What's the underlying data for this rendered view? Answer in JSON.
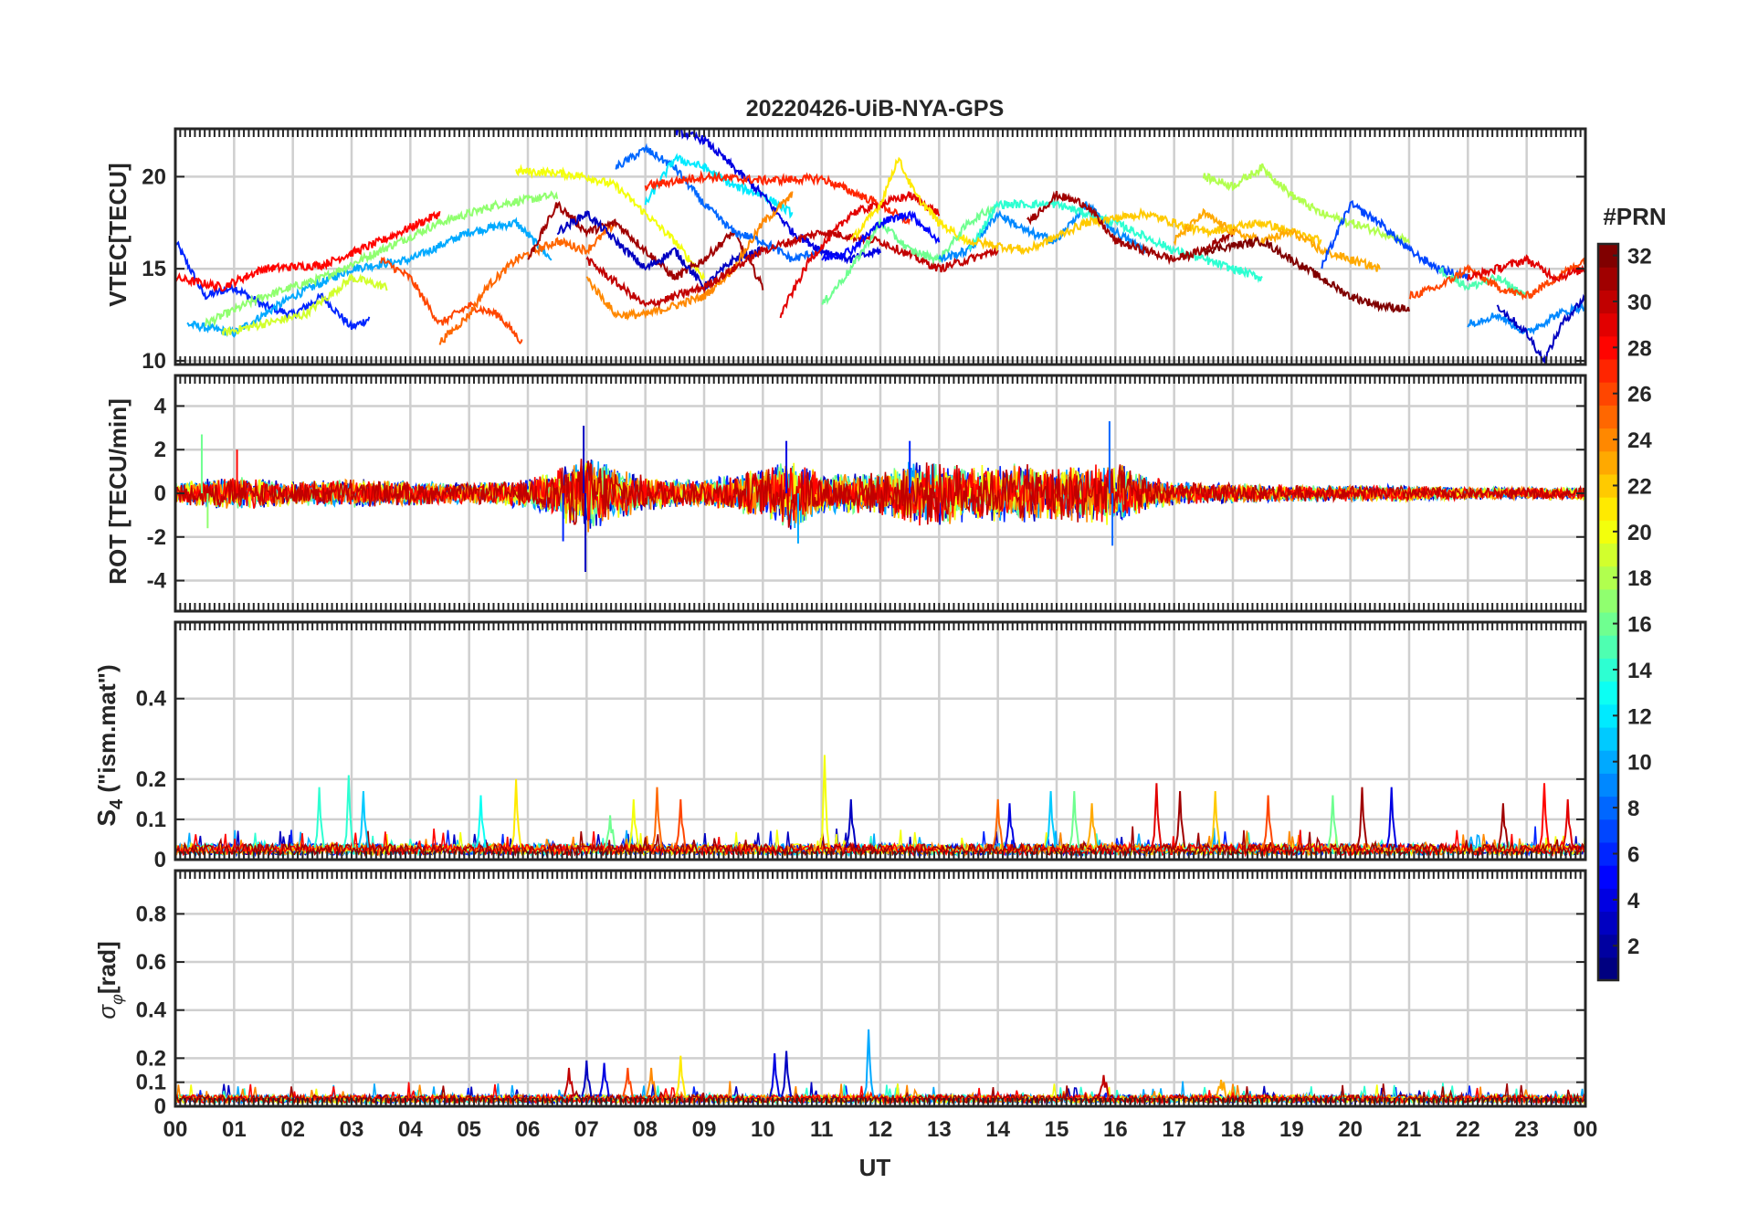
{
  "figure": {
    "title": "20220426-UiB-NYA-GPS",
    "xlabel": "UT",
    "x_tick_labels": [
      "00",
      "01",
      "02",
      "03",
      "04",
      "05",
      "06",
      "07",
      "08",
      "09",
      "10",
      "11",
      "12",
      "13",
      "14",
      "15",
      "16",
      "17",
      "18",
      "19",
      "20",
      "21",
      "22",
      "23",
      "00"
    ]
  },
  "colorbar": {
    "title": "#PRN",
    "tick_labels": [
      "2",
      "4",
      "6",
      "8",
      "10",
      "12",
      "14",
      "16",
      "18",
      "20",
      "22",
      "24",
      "26",
      "28",
      "30",
      "32"
    ],
    "range": [
      1,
      32
    ],
    "colormap": "jet",
    "colormap_colors": [
      "#00008f",
      "#0000ff",
      "#0080ff",
      "#00ffff",
      "#80ff80",
      "#ffff00",
      "#ff8000",
      "#ff0000",
      "#800000"
    ]
  },
  "chart_data": [
    {
      "type": "line",
      "panel": "VTEC",
      "ylabel": "VTEC[TECU]",
      "xlim": [
        0,
        24
      ],
      "ylim": [
        9.8,
        22.6
      ],
      "y_ticks": [
        10,
        15,
        20
      ],
      "y_tick_labels": [
        "10",
        "15",
        "20"
      ],
      "series_note": "one trace per GPS PRN, colored by PRN number",
      "series": [
        {
          "prn": 6,
          "x": [
            0.0,
            0.5,
            1.0,
            1.5,
            2.0,
            2.5,
            3.0,
            3.3
          ],
          "y": [
            16.5,
            13.5,
            14.0,
            13.0,
            12.5,
            13.5,
            11.8,
            12.3
          ]
        },
        {
          "prn": 10,
          "x": [
            0.2,
            1.0,
            2.0,
            3.0,
            4.0,
            5.0,
            5.8,
            6.4
          ],
          "y": [
            12.0,
            11.5,
            13.5,
            15.0,
            15.5,
            17.0,
            17.5,
            15.5
          ]
        },
        {
          "prn": 17,
          "x": [
            0.5,
            1.5,
            2.5,
            3.5,
            4.5,
            5.5,
            6.5
          ],
          "y": [
            12.0,
            13.5,
            14.5,
            16.0,
            17.5,
            18.5,
            19.0
          ]
        },
        {
          "prn": 19,
          "x": [
            0.8,
            1.5,
            2.2,
            3.0,
            3.6
          ],
          "y": [
            11.5,
            12.0,
            12.5,
            14.5,
            14.0
          ]
        },
        {
          "prn": 28,
          "x": [
            0.0,
            0.8,
            1.5,
            2.5,
            3.5,
            4.5
          ],
          "y": [
            14.5,
            14.0,
            15.0,
            15.2,
            16.5,
            18.0
          ]
        },
        {
          "prn": 26,
          "x": [
            3.5,
            4.0,
            4.5,
            5.0,
            5.5,
            5.9
          ],
          "y": [
            15.5,
            14.5,
            12.0,
            13.0,
            12.5,
            11.0
          ]
        },
        {
          "prn": 25,
          "x": [
            4.5,
            5.0,
            5.3,
            5.8,
            6.5,
            7.0,
            7.5
          ],
          "y": [
            11.0,
            12.5,
            14.0,
            15.5,
            16.5,
            16.0,
            17.5
          ]
        },
        {
          "prn": 20,
          "x": [
            5.8,
            6.5,
            7.0,
            7.5,
            8.0,
            8.5,
            9.0
          ],
          "y": [
            20.3,
            20.2,
            20.0,
            19.5,
            18.0,
            16.5,
            14.5
          ]
        },
        {
          "prn": 31,
          "x": [
            6.0,
            6.5,
            7.0,
            7.5,
            8.0,
            8.5,
            9.0,
            9.5,
            10.0
          ],
          "y": [
            15.5,
            18.5,
            17.0,
            17.5,
            16.0,
            14.5,
            15.5,
            17.0,
            14.0
          ]
        },
        {
          "prn": 3,
          "x": [
            6.5,
            7.0,
            7.5,
            8.0,
            8.5,
            9.0,
            9.5,
            10.0
          ],
          "y": [
            17.0,
            18.0,
            16.5,
            15.0,
            16.0,
            14.0,
            15.5,
            16.0
          ]
        },
        {
          "prn": 8,
          "x": [
            7.5,
            8.0,
            8.5,
            9.0,
            9.5,
            10.0,
            10.5,
            11.0
          ],
          "y": [
            20.5,
            21.5,
            20.5,
            18.5,
            17.0,
            16.5,
            15.5,
            16.0
          ]
        },
        {
          "prn": 12,
          "x": [
            8.0,
            8.5,
            9.0,
            9.5,
            10.0,
            10.5
          ],
          "y": [
            18.5,
            21.0,
            20.5,
            19.5,
            19.0,
            18.0
          ]
        },
        {
          "prn": 4,
          "x": [
            8.5,
            9.0,
            9.5,
            10.0,
            10.5,
            11.0,
            11.5,
            12.0
          ],
          "y": [
            22.5,
            22.0,
            20.5,
            19.0,
            17.0,
            16.0,
            15.5,
            16.0
          ]
        },
        {
          "prn": 24,
          "x": [
            7.0,
            7.5,
            8.0,
            8.5,
            9.0,
            9.5,
            10.0,
            10.5
          ],
          "y": [
            14.5,
            12.5,
            12.5,
            13.0,
            13.5,
            15.0,
            17.5,
            19.0
          ]
        },
        {
          "prn": 27,
          "x": [
            8.0,
            9.0,
            10.0,
            11.0,
            12.0,
            12.5
          ],
          "y": [
            19.5,
            20.0,
            19.8,
            19.9,
            18.5,
            17.5
          ]
        },
        {
          "prn": 29,
          "x": [
            10.3,
            10.8,
            11.5,
            12.5,
            13.0
          ],
          "y": [
            12.5,
            15.5,
            18.0,
            19.0,
            18.0
          ]
        },
        {
          "prn": 30,
          "x": [
            7.0,
            8.0,
            9.0,
            10.0,
            11.0,
            12.0,
            13.0,
            14.0
          ],
          "y": [
            15.5,
            13.0,
            14.0,
            16.0,
            17.0,
            16.5,
            15.0,
            16.0
          ]
        },
        {
          "prn": 21,
          "x": [
            11.5,
            12.0,
            12.3,
            12.6,
            13.0,
            13.5
          ],
          "y": [
            16.5,
            18.5,
            21.0,
            19.0,
            17.5,
            16.5
          ]
        },
        {
          "prn": 16,
          "x": [
            11.0,
            11.5,
            12.0,
            12.5,
            13.0,
            13.5,
            14.0
          ],
          "y": [
            13.0,
            15.0,
            17.5,
            16.0,
            15.5,
            17.5,
            18.5
          ]
        },
        {
          "prn": 5,
          "x": [
            11.0,
            11.5,
            12.0,
            12.5,
            13.0
          ],
          "y": [
            15.5,
            16.0,
            17.5,
            18.0,
            16.5
          ]
        },
        {
          "prn": 9,
          "x": [
            13.0,
            13.5,
            14.0,
            14.5,
            15.0,
            15.5,
            16.0,
            16.5
          ],
          "y": [
            15.5,
            16.0,
            18.0,
            17.0,
            16.5,
            18.5,
            17.0,
            16.0
          ]
        },
        {
          "prn": 14,
          "x": [
            13.5,
            14.0,
            15.0,
            16.0,
            17.0,
            18.0,
            18.5
          ],
          "y": [
            16.0,
            18.5,
            18.5,
            17.5,
            16.0,
            15.0,
            14.5
          ]
        },
        {
          "prn": 22,
          "x": [
            13.5,
            14.5,
            15.5,
            16.5,
            17.5,
            18.5,
            19.5
          ],
          "y": [
            16.5,
            16.0,
            17.5,
            18.0,
            17.0,
            17.5,
            16.5
          ]
        },
        {
          "prn": 31,
          "x": [
            14.5,
            15.0,
            15.5,
            16.0,
            16.5,
            17.0,
            17.5,
            18.0
          ],
          "y": [
            17.5,
            19.0,
            18.5,
            16.5,
            16.0,
            15.5,
            16.0,
            17.0
          ]
        },
        {
          "prn": 18,
          "x": [
            17.5,
            18.0,
            18.5,
            19.0,
            19.5,
            20.0,
            20.5,
            21.0
          ],
          "y": [
            20.0,
            19.5,
            20.5,
            19.0,
            18.0,
            17.5,
            17.0,
            16.5
          ]
        },
        {
          "prn": 23,
          "x": [
            17.0,
            17.5,
            18.0,
            18.5,
            19.0,
            19.5,
            20.0,
            20.5
          ],
          "y": [
            16.5,
            18.0,
            17.0,
            16.5,
            17.0,
            16.0,
            15.5,
            15.0
          ]
        },
        {
          "prn": 32,
          "x": [
            17.5,
            18.5,
            19.0,
            19.5,
            20.0,
            20.5,
            21.0
          ],
          "y": [
            16.0,
            16.5,
            15.5,
            14.5,
            13.5,
            13.0,
            12.8
          ]
        },
        {
          "prn": 7,
          "x": [
            19.5,
            20.0,
            20.5,
            21.0,
            21.5,
            22.0
          ],
          "y": [
            15.0,
            18.5,
            17.5,
            16.0,
            15.0,
            14.5
          ]
        },
        {
          "prn": 15,
          "x": [
            21.5,
            22.0,
            22.5,
            23.0
          ],
          "y": [
            15.0,
            14.0,
            14.5,
            13.5
          ]
        },
        {
          "prn": 26,
          "x": [
            21.0,
            21.5,
            22.0,
            22.5,
            23.0,
            23.5,
            24.0
          ],
          "y": [
            13.5,
            14.0,
            15.0,
            14.0,
            13.5,
            14.5,
            15.5
          ]
        },
        {
          "prn": 9,
          "x": [
            22.0,
            22.5,
            23.0,
            23.5,
            24.0
          ],
          "y": [
            12.0,
            12.5,
            11.5,
            12.5,
            13.0
          ]
        },
        {
          "prn": 29,
          "x": [
            22.0,
            22.5,
            23.0,
            23.5,
            24.0
          ],
          "y": [
            14.5,
            15.0,
            15.5,
            14.5,
            15.0
          ]
        },
        {
          "prn": 3,
          "x": [
            22.5,
            23.0,
            23.3,
            23.6,
            24.0
          ],
          "y": [
            13.0,
            11.5,
            10.0,
            12.0,
            13.5
          ]
        }
      ]
    },
    {
      "type": "line",
      "panel": "ROT",
      "ylabel": "ROT [TECU/min]",
      "xlim": [
        0,
        24
      ],
      "ylim": [
        -5.4,
        5.4
      ],
      "y_ticks": [
        -4,
        -2,
        0,
        2,
        4
      ],
      "y_tick_labels": [
        "-4",
        "-2",
        "0",
        "2",
        "4"
      ],
      "series_note": "dense noisy traces around 0 for all PRNs",
      "envelope": {
        "x": [
          0,
          1,
          2,
          3,
          4,
          5,
          6,
          6.5,
          7,
          7.5,
          8,
          9,
          10,
          10.5,
          11,
          12,
          12.5,
          13,
          14,
          15,
          16,
          16.5,
          17,
          18,
          19,
          20,
          21,
          22,
          23,
          24
        ],
        "y": [
          0.6,
          0.8,
          0.6,
          0.7,
          0.6,
          0.5,
          0.7,
          1.2,
          2.0,
          1.3,
          0.8,
          0.7,
          1.2,
          1.8,
          1.0,
          1.0,
          1.6,
          1.5,
          1.4,
          1.4,
          1.5,
          0.9,
          0.6,
          0.5,
          0.4,
          0.4,
          0.4,
          0.3,
          0.3,
          0.3
        ]
      },
      "spikes": [
        {
          "x": 0.45,
          "y": 2.7,
          "prn": 16
        },
        {
          "x": 1.05,
          "y": 2.0,
          "prn": 28
        },
        {
          "x": 6.95,
          "y": 3.1,
          "prn": 3
        },
        {
          "x": 6.98,
          "y": -3.6,
          "prn": 3
        },
        {
          "x": 6.6,
          "y": -2.2,
          "prn": 6
        },
        {
          "x": 10.4,
          "y": 2.4,
          "prn": 4
        },
        {
          "x": 10.6,
          "y": -2.3,
          "prn": 10
        },
        {
          "x": 12.5,
          "y": 2.4,
          "prn": 6
        },
        {
          "x": 15.9,
          "y": 3.3,
          "prn": 8
        },
        {
          "x": 15.95,
          "y": -2.4,
          "prn": 8
        },
        {
          "x": 0.55,
          "y": -1.6,
          "prn": 17
        }
      ]
    },
    {
      "type": "line",
      "panel": "S4",
      "ylabel": "S4 (\"ism.mat\")",
      "ylabel_main": "S",
      "ylabel_sub": "4",
      "ylabel_rest": " (\"ism.mat\")",
      "xlim": [
        0,
        24
      ],
      "ylim": [
        0,
        0.59
      ],
      "y_ticks": [
        0,
        0.1,
        0.2,
        0.4
      ],
      "y_tick_labels": [
        "0",
        "0.1",
        "0.2",
        "0.4"
      ],
      "baseline": 0.03,
      "spikes": [
        {
          "x": 2.45,
          "y": 0.18,
          "prn": 14
        },
        {
          "x": 2.95,
          "y": 0.21,
          "prn": 14
        },
        {
          "x": 3.2,
          "y": 0.17,
          "prn": 11
        },
        {
          "x": 5.2,
          "y": 0.16,
          "prn": 13
        },
        {
          "x": 5.8,
          "y": 0.2,
          "prn": 21
        },
        {
          "x": 7.4,
          "y": 0.11,
          "prn": 16
        },
        {
          "x": 7.8,
          "y": 0.15,
          "prn": 20
        },
        {
          "x": 8.2,
          "y": 0.18,
          "prn": 25
        },
        {
          "x": 8.6,
          "y": 0.15,
          "prn": 26
        },
        {
          "x": 11.05,
          "y": 0.26,
          "prn": 20
        },
        {
          "x": 11.5,
          "y": 0.15,
          "prn": 3
        },
        {
          "x": 14.0,
          "y": 0.15,
          "prn": 25
        },
        {
          "x": 14.2,
          "y": 0.14,
          "prn": 4
        },
        {
          "x": 14.9,
          "y": 0.17,
          "prn": 11
        },
        {
          "x": 15.3,
          "y": 0.17,
          "prn": 16
        },
        {
          "x": 15.6,
          "y": 0.14,
          "prn": 23
        },
        {
          "x": 16.7,
          "y": 0.19,
          "prn": 29
        },
        {
          "x": 17.1,
          "y": 0.17,
          "prn": 31
        },
        {
          "x": 17.7,
          "y": 0.17,
          "prn": 22
        },
        {
          "x": 18.6,
          "y": 0.16,
          "prn": 26
        },
        {
          "x": 19.7,
          "y": 0.16,
          "prn": 16
        },
        {
          "x": 20.2,
          "y": 0.18,
          "prn": 31
        },
        {
          "x": 20.7,
          "y": 0.18,
          "prn": 4
        },
        {
          "x": 22.6,
          "y": 0.14,
          "prn": 31
        },
        {
          "x": 23.3,
          "y": 0.19,
          "prn": 28
        },
        {
          "x": 23.7,
          "y": 0.15,
          "prn": 29
        }
      ]
    },
    {
      "type": "line",
      "panel": "sigma_phi",
      "ylabel": "σφ[rad]",
      "ylabel_main": "σ",
      "ylabel_sub": "φ",
      "ylabel_rest": "[rad]",
      "xlim": [
        0,
        24
      ],
      "ylim": [
        0,
        0.98
      ],
      "y_ticks": [
        0,
        0.1,
        0.2,
        0.4,
        0.6,
        0.8
      ],
      "y_tick_labels": [
        "0",
        "0.1",
        "0.2",
        "0.4",
        "0.6",
        "0.8"
      ],
      "baseline": 0.04,
      "spikes": [
        {
          "x": 6.7,
          "y": 0.16,
          "prn": 30
        },
        {
          "x": 7.0,
          "y": 0.19,
          "prn": 3
        },
        {
          "x": 7.3,
          "y": 0.18,
          "prn": 4
        },
        {
          "x": 7.7,
          "y": 0.16,
          "prn": 26
        },
        {
          "x": 8.1,
          "y": 0.16,
          "prn": 24
        },
        {
          "x": 8.6,
          "y": 0.21,
          "prn": 21
        },
        {
          "x": 10.2,
          "y": 0.22,
          "prn": 4
        },
        {
          "x": 10.4,
          "y": 0.23,
          "prn": 3
        },
        {
          "x": 11.8,
          "y": 0.32,
          "prn": 10
        },
        {
          "x": 15.8,
          "y": 0.13,
          "prn": 30
        },
        {
          "x": 17.8,
          "y": 0.11,
          "prn": 23
        }
      ]
    }
  ]
}
